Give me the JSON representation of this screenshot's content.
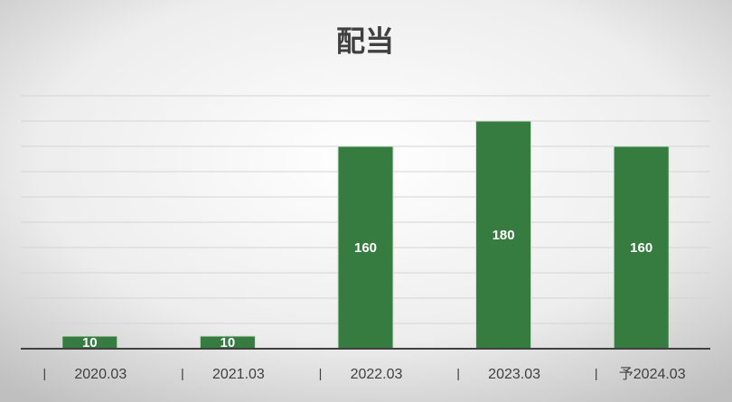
{
  "chart_data": {
    "type": "bar",
    "title": "配当",
    "categories": [
      "2020.03",
      "2021.03",
      "2022.03",
      "2023.03",
      "予2024.03"
    ],
    "values": [
      10,
      10,
      160,
      180,
      160
    ],
    "color": "#367c40",
    "ylim": [
      0,
      200
    ],
    "yticks": [
      0,
      20,
      40,
      60,
      80,
      100,
      120,
      140,
      160,
      180,
      200
    ],
    "grid": true
  }
}
